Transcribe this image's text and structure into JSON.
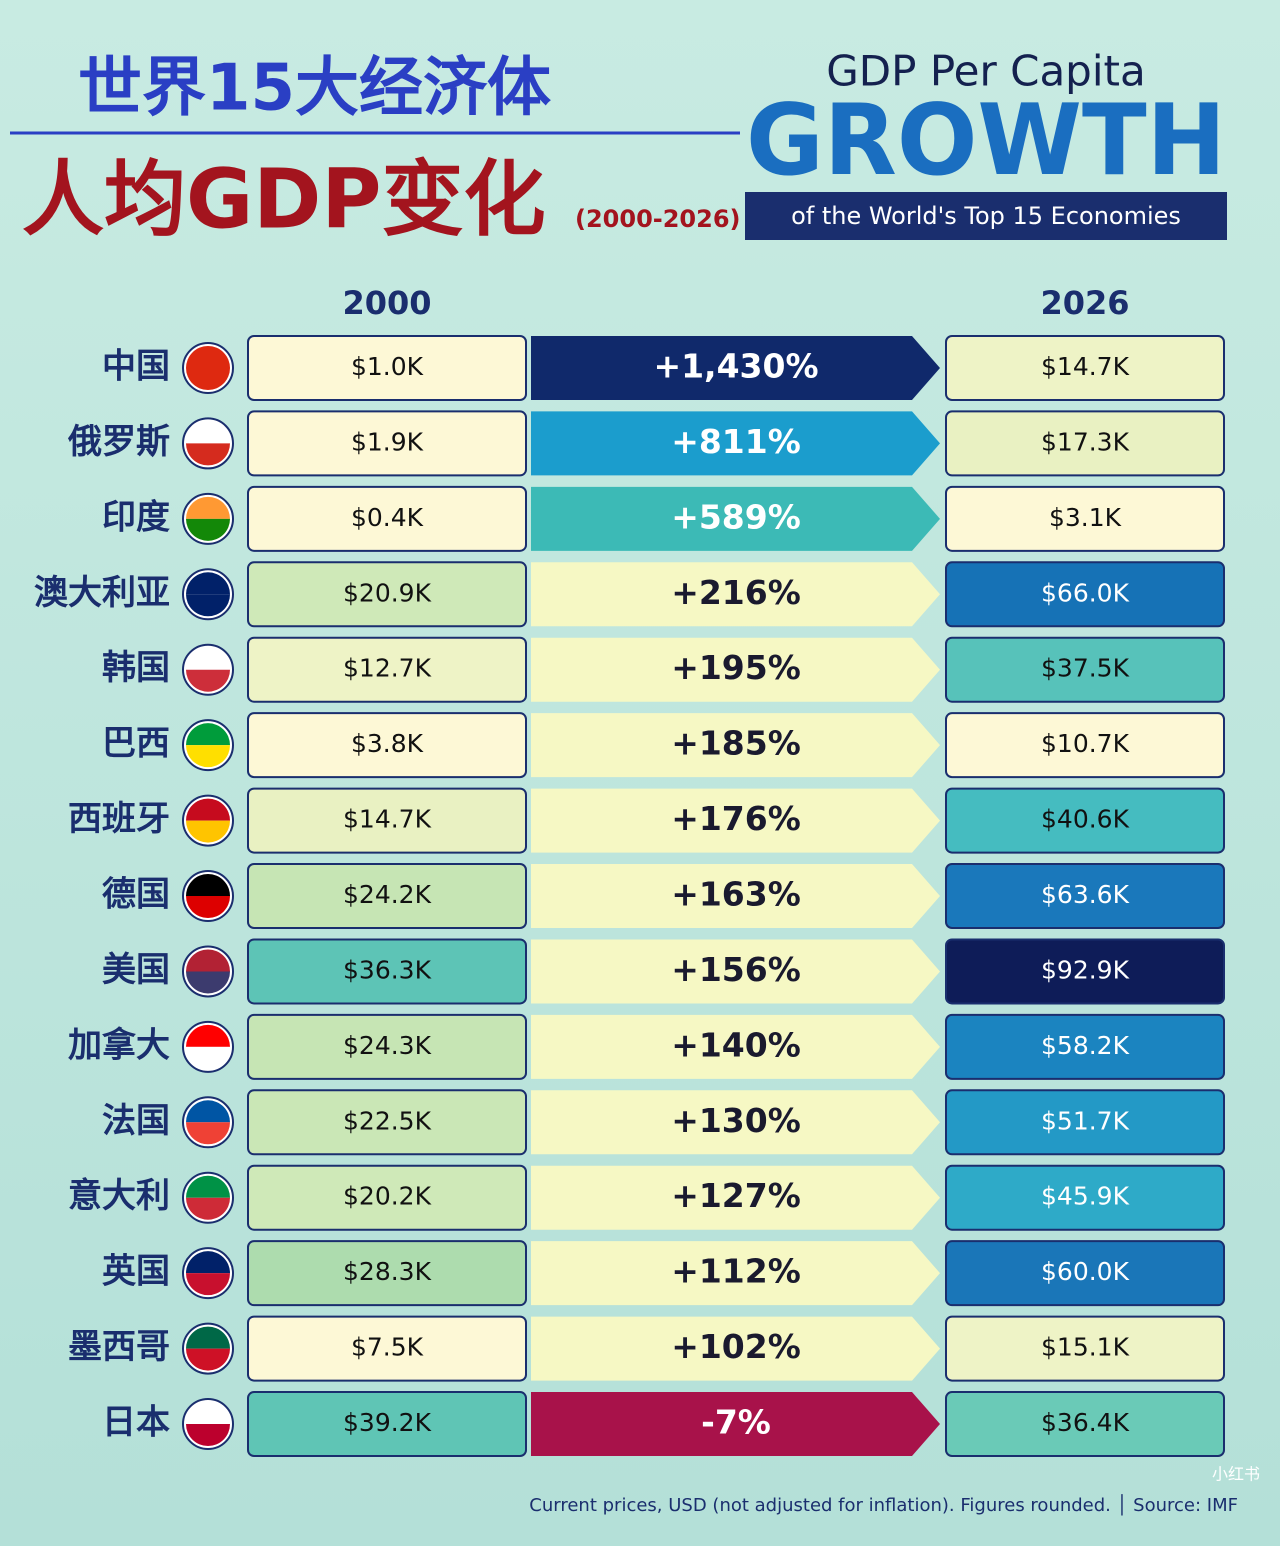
{
  "header": {
    "title_cn_1": "世界15大经济体",
    "title_cn_2": "人均GDP变化",
    "years": "(2000-2026)",
    "title_en_1": "GDP Per Capita",
    "title_en_2": "GROWTH",
    "subtitle_en": "of the World's Top 15 Economies"
  },
  "table": {
    "columns": [
      "2000",
      "2026"
    ],
    "rows": [
      [
        "中国",
        "$1.0K",
        "+1,430%",
        "$14.7K"
      ],
      [
        "俄罗斯",
        "$1.9K",
        "+811%",
        "$17.3K"
      ],
      [
        "印度",
        "$0.4K",
        "+589%",
        "$3.1K"
      ],
      [
        "澳大利亚",
        "$20.9K",
        "+216%",
        "$66.0K"
      ],
      [
        "韩国",
        "$12.7K",
        "+195%",
        "$37.5K"
      ],
      [
        "巴西",
        "$3.8K",
        "+185%",
        "$10.7K"
      ],
      [
        "西班牙",
        "$14.7K",
        "+176%",
        "$40.6K"
      ],
      [
        "德国",
        "$24.2K",
        "+163%",
        "$63.6K"
      ],
      [
        "美国",
        "$36.3K",
        "+156%",
        "$92.9K"
      ],
      [
        "加拿大",
        "$24.3K",
        "+140%",
        "$58.2K"
      ],
      [
        "法国",
        "$22.5K",
        "+130%",
        "$51.7K"
      ],
      [
        "意大利",
        "$20.2K",
        "+127%",
        "$45.9K"
      ],
      [
        "英国",
        "$28.3K",
        "+112%",
        "$60.0K"
      ],
      [
        "墨西哥",
        "$7.5K",
        "+102%",
        "$15.1K"
      ],
      [
        "日本",
        "$39.2K",
        "-7%",
        "$36.4K"
      ]
    ],
    "colors": [
      [
        "#fdf8d6",
        "#10296b",
        "#eef3c6"
      ],
      [
        "#fdf8d6",
        "#1b9dcd",
        "#e9f1c2"
      ],
      [
        "#fdf8d6",
        "#3cbab6",
        "#fdf8d6"
      ],
      [
        "#cfe9b8",
        "#f6f8c4",
        "#1672b6"
      ],
      [
        "#eef3c6",
        "#f6f8c4",
        "#57c2ba"
      ],
      [
        "#fdf8d6",
        "#f6f8c4",
        "#fdf8d6"
      ],
      [
        "#e9f1c2",
        "#f6f8c4",
        "#45bcc0"
      ],
      [
        "#c6e5b4",
        "#f6f8c4",
        "#1a78bb"
      ],
      [
        "#5dc4b6",
        "#f6f8c4",
        "#0e1c58"
      ],
      [
        "#c6e5b4",
        "#f6f8c4",
        "#1b84c0"
      ],
      [
        "#cae7b6",
        "#f6f8c4",
        "#2399c6"
      ],
      [
        "#cfe9b8",
        "#f6f8c4",
        "#2eaac8"
      ],
      [
        "#addcae",
        "#f6f8c4",
        "#1a76b8"
      ],
      [
        "#fdf8d6",
        "#f6f8c4",
        "#eef3c6"
      ],
      [
        "#5fc5b5",
        "#a8124a",
        "#6acab7"
      ]
    ]
  },
  "footer": "Current prices, USD (not adjusted for inflation). Figures rounded. │ Source: IMF",
  "watermark": "小红书"
}
